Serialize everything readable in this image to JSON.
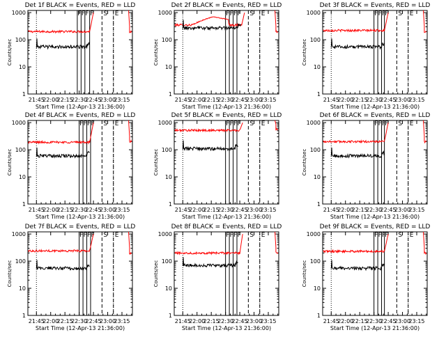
{
  "figure": {
    "ylabel": "Counts/sec",
    "xlabel": "Start Time (12-Apr-13 21:36:00)",
    "x_tick_labels": [
      "21:45",
      "22:00",
      "22:15",
      "22:30",
      "22:45",
      "23:00",
      "23:15"
    ],
    "y_tick_labels": [
      "1",
      "10",
      "100",
      "1000"
    ],
    "colors": {
      "events": "#000000",
      "lld": "#ff0000",
      "axes": "#000000",
      "background": "#ffffff"
    }
  },
  "chart_data": [
    {
      "id": "1f",
      "title": "Det 1f BLACK = Events, RED = LLD",
      "type": "line",
      "xlim_minutes": [
        -9,
        101
      ],
      "ylim": [
        1,
        1200
      ],
      "y_log": true,
      "lld_base": 200,
      "events_base": 55,
      "events_start_min": 0,
      "events_end_min": 56,
      "ramp": {
        "start": 56,
        "peak_time": 60,
        "peak": 1000
      },
      "recover": {
        "time": 98,
        "value": 200,
        "end": 100
      },
      "flags": [
        {
          "t": 43,
          "label": "F"
        },
        {
          "t": 47,
          "label": "F"
        },
        {
          "t": 51,
          "label": "F"
        },
        {
          "t": 56,
          "label": "F"
        },
        {
          "t": 69,
          "label": "S"
        },
        {
          "t": 81,
          "label": "E"
        }
      ],
      "event_markers": [
        0,
        81
      ]
    },
    {
      "id": "2f",
      "title": "Det 2f BLACK = Events, RED = LLD",
      "type": "line",
      "xlim_minutes": [
        -9,
        101
      ],
      "ylim": [
        1,
        1200
      ],
      "y_log": true,
      "lld_base": 350,
      "events_base": 270,
      "events_start_min": 0,
      "events_end_min": 61,
      "ramp": {
        "start": 62,
        "peak_time": 65,
        "peak": 1000
      },
      "recover": {
        "time": 98,
        "value": 200,
        "end": 100
      },
      "bump": {
        "start": 10,
        "peak": 32,
        "end": 48,
        "value": 700
      },
      "flags": [
        {
          "t": 45,
          "label": "F"
        },
        {
          "t": 49,
          "label": "F"
        },
        {
          "t": 53,
          "label": "F"
        },
        {
          "t": 57,
          "label": "F"
        },
        {
          "t": 69,
          "label": "S"
        },
        {
          "t": 81,
          "label": "E"
        }
      ],
      "event_markers": [
        0,
        81
      ]
    },
    {
      "id": "3f",
      "title": "Det 3f BLACK = Events, RED = LLD",
      "type": "line",
      "xlim_minutes": [
        -9,
        101
      ],
      "ylim": [
        1,
        1200
      ],
      "y_log": true,
      "lld_base": 220,
      "events_base": 55,
      "events_start_min": 0,
      "events_end_min": 56,
      "ramp": {
        "start": 56,
        "peak_time": 60,
        "peak": 1000
      },
      "recover": {
        "time": 98,
        "value": 200,
        "end": 100
      },
      "flags": [
        {
          "t": 45,
          "label": "F"
        },
        {
          "t": 49,
          "label": "F"
        },
        {
          "t": 53,
          "label": "F"
        },
        {
          "t": 56,
          "label": "F"
        },
        {
          "t": 69,
          "label": "S"
        },
        {
          "t": 81,
          "label": "E"
        }
      ],
      "event_markers": [
        0,
        81
      ]
    },
    {
      "id": "4f",
      "title": "Det 4f BLACK = Events, RED = LLD",
      "type": "line",
      "xlim_minutes": [
        -9,
        101
      ],
      "ylim": [
        1,
        1200
      ],
      "y_log": true,
      "lld_base": 190,
      "events_base": 60,
      "events_start_min": 0,
      "events_end_min": 56,
      "ramp": {
        "start": 56,
        "peak_time": 60,
        "peak": 1000
      },
      "recover": {
        "time": 98,
        "value": 200,
        "end": 100
      },
      "flags": [
        {
          "t": 45,
          "label": "F"
        },
        {
          "t": 49,
          "label": "F"
        },
        {
          "t": 53,
          "label": "F"
        },
        {
          "t": 57,
          "label": "F"
        },
        {
          "t": 69,
          "label": "S"
        },
        {
          "t": 81,
          "label": "E"
        }
      ],
      "event_markers": [
        0,
        81
      ]
    },
    {
      "id": "5f",
      "title": "Det 5f BLACK = Events, RED = LLD",
      "type": "line",
      "xlim_minutes": [
        -9,
        101
      ],
      "ylim": [
        1,
        1200
      ],
      "y_log": true,
      "lld_base": 520,
      "events_base": 110,
      "events_start_min": 0,
      "events_end_min": 58,
      "ramp": {
        "start": 60,
        "peak_time": 63,
        "peak": 1000
      },
      "recover": {
        "time": 98,
        "value": 550,
        "end": 100
      },
      "flags": [
        {
          "t": 45,
          "label": "F"
        },
        {
          "t": 49,
          "label": "F"
        },
        {
          "t": 53,
          "label": "F"
        },
        {
          "t": 57,
          "label": "F"
        },
        {
          "t": 69,
          "label": "S"
        },
        {
          "t": 81,
          "label": "E"
        }
      ],
      "event_markers": [
        0,
        81
      ]
    },
    {
      "id": "6f",
      "title": "Det 6f BLACK = Events, RED = LLD",
      "type": "line",
      "xlim_minutes": [
        -9,
        101
      ],
      "ylim": [
        1,
        1200
      ],
      "y_log": true,
      "lld_base": 200,
      "events_base": 60,
      "events_start_min": 0,
      "events_end_min": 56,
      "ramp": {
        "start": 56,
        "peak_time": 60,
        "peak": 1000
      },
      "recover": {
        "time": 98,
        "value": 200,
        "end": 100
      },
      "flags": [
        {
          "t": 45,
          "label": "F"
        },
        {
          "t": 49,
          "label": "F"
        },
        {
          "t": 53,
          "label": "F"
        },
        {
          "t": 56,
          "label": "F"
        },
        {
          "t": 69,
          "label": "S"
        },
        {
          "t": 81,
          "label": "E"
        }
      ],
      "event_markers": [
        0,
        81
      ]
    },
    {
      "id": "7f",
      "title": "Det 7f BLACK = Events, RED = LLD",
      "type": "line",
      "xlim_minutes": [
        -9,
        101
      ],
      "ylim": [
        1,
        1200
      ],
      "y_log": true,
      "lld_base": 240,
      "events_base": 55,
      "events_start_min": 0,
      "events_end_min": 56,
      "ramp": {
        "start": 56,
        "peak_time": 60,
        "peak": 1000
      },
      "recover": {
        "time": 98,
        "value": 200,
        "end": 100
      },
      "flags": [
        {
          "t": 45,
          "label": "F"
        },
        {
          "t": 49,
          "label": "F"
        },
        {
          "t": 53,
          "label": "F"
        },
        {
          "t": 57,
          "label": "F"
        },
        {
          "t": 69,
          "label": "S"
        },
        {
          "t": 81,
          "label": "E"
        }
      ],
      "event_markers": [
        0,
        81
      ]
    },
    {
      "id": "8f",
      "title": "Det 8f BLACK = Events, RED = LLD",
      "type": "line",
      "xlim_minutes": [
        -9,
        101
      ],
      "ylim": [
        1,
        1200
      ],
      "y_log": true,
      "lld_base": 200,
      "events_base": 70,
      "events_start_min": 0,
      "events_end_min": 58,
      "ramp": {
        "start": 60,
        "peak_time": 63,
        "peak": 1000
      },
      "recover": {
        "time": 98,
        "value": 200,
        "end": 100
      },
      "flags": [
        {
          "t": 45,
          "label": "F"
        },
        {
          "t": 49,
          "label": "F"
        },
        {
          "t": 53,
          "label": "F"
        },
        {
          "t": 57,
          "label": "F"
        },
        {
          "t": 69,
          "label": "S"
        },
        {
          "t": 81,
          "label": "E"
        }
      ],
      "event_markers": [
        0,
        81
      ]
    },
    {
      "id": "9f",
      "title": "Det 9f BLACK = Events, RED = LLD",
      "type": "line",
      "xlim_minutes": [
        -9,
        101
      ],
      "ylim": [
        1,
        1200
      ],
      "y_log": true,
      "lld_base": 230,
      "events_base": 55,
      "events_start_min": 0,
      "events_end_min": 56,
      "ramp": {
        "start": 56,
        "peak_time": 60,
        "peak": 1000
      },
      "recover": {
        "time": 98,
        "value": 200,
        "end": 100
      },
      "flags": [
        {
          "t": 45,
          "label": "F"
        },
        {
          "t": 49,
          "label": "F"
        },
        {
          "t": 53,
          "label": "F"
        },
        {
          "t": 56,
          "label": "F"
        },
        {
          "t": 69,
          "label": "S"
        },
        {
          "t": 81,
          "label": "E"
        }
      ],
      "event_markers": [
        0,
        81
      ]
    }
  ]
}
